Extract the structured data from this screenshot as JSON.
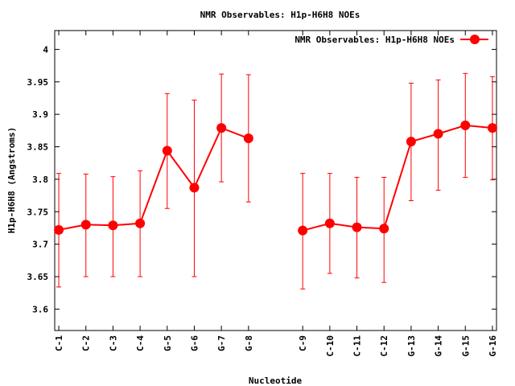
{
  "chart_data": {
    "type": "line",
    "title": "NMR Observables: H1p-H6H8 NOEs",
    "xlabel": "Nucleotide",
    "ylabel": "H1p-H6H8 (Angstroms)",
    "ylim": [
      3.567,
      4.029
    ],
    "xlim": [
      0.85,
      17.15
    ],
    "yticks": [
      "3.6",
      "3.65",
      "3.7",
      "3.75",
      "3.8",
      "3.85",
      "3.9",
      "3.95",
      "4"
    ],
    "ytick_values": [
      3.6,
      3.65,
      3.7,
      3.75,
      3.8,
      3.85,
      3.9,
      3.95,
      4.0
    ],
    "legend": {
      "label": "NMR Observables: H1p-H6H8 NOEs",
      "placement": "top-right"
    },
    "grid": false,
    "color": "#ff0000",
    "categories": [
      "C-1",
      "C-2",
      "C-3",
      "C-4",
      "G-5",
      "G-6",
      "G-7",
      "G-8",
      "C-9",
      "C-10",
      "C-11",
      "C-12",
      "G-13",
      "G-14",
      "G-15",
      "G-16"
    ],
    "x": [
      1,
      2,
      3,
      4,
      5,
      6,
      7,
      8,
      10,
      11,
      12,
      13,
      14,
      15,
      16,
      17
    ],
    "segments": [
      [
        0,
        7
      ],
      [
        8,
        15
      ]
    ],
    "series": [
      {
        "name": "NMR Observables: H1p-H6H8 NOEs",
        "values": [
          3.722,
          3.73,
          3.729,
          3.732,
          3.844,
          3.787,
          3.879,
          3.863,
          3.721,
          3.732,
          3.726,
          3.724,
          3.858,
          3.87,
          3.883,
          3.879
        ],
        "err_high": [
          3.809,
          3.808,
          3.804,
          3.813,
          3.932,
          3.922,
          3.962,
          3.961,
          3.809,
          3.809,
          3.803,
          3.803,
          3.948,
          3.953,
          3.963,
          3.958
        ],
        "err_low": [
          3.634,
          3.65,
          3.65,
          3.65,
          3.755,
          3.65,
          3.796,
          3.765,
          3.631,
          3.655,
          3.648,
          3.641,
          3.767,
          3.783,
          3.803,
          3.799
        ]
      }
    ]
  }
}
